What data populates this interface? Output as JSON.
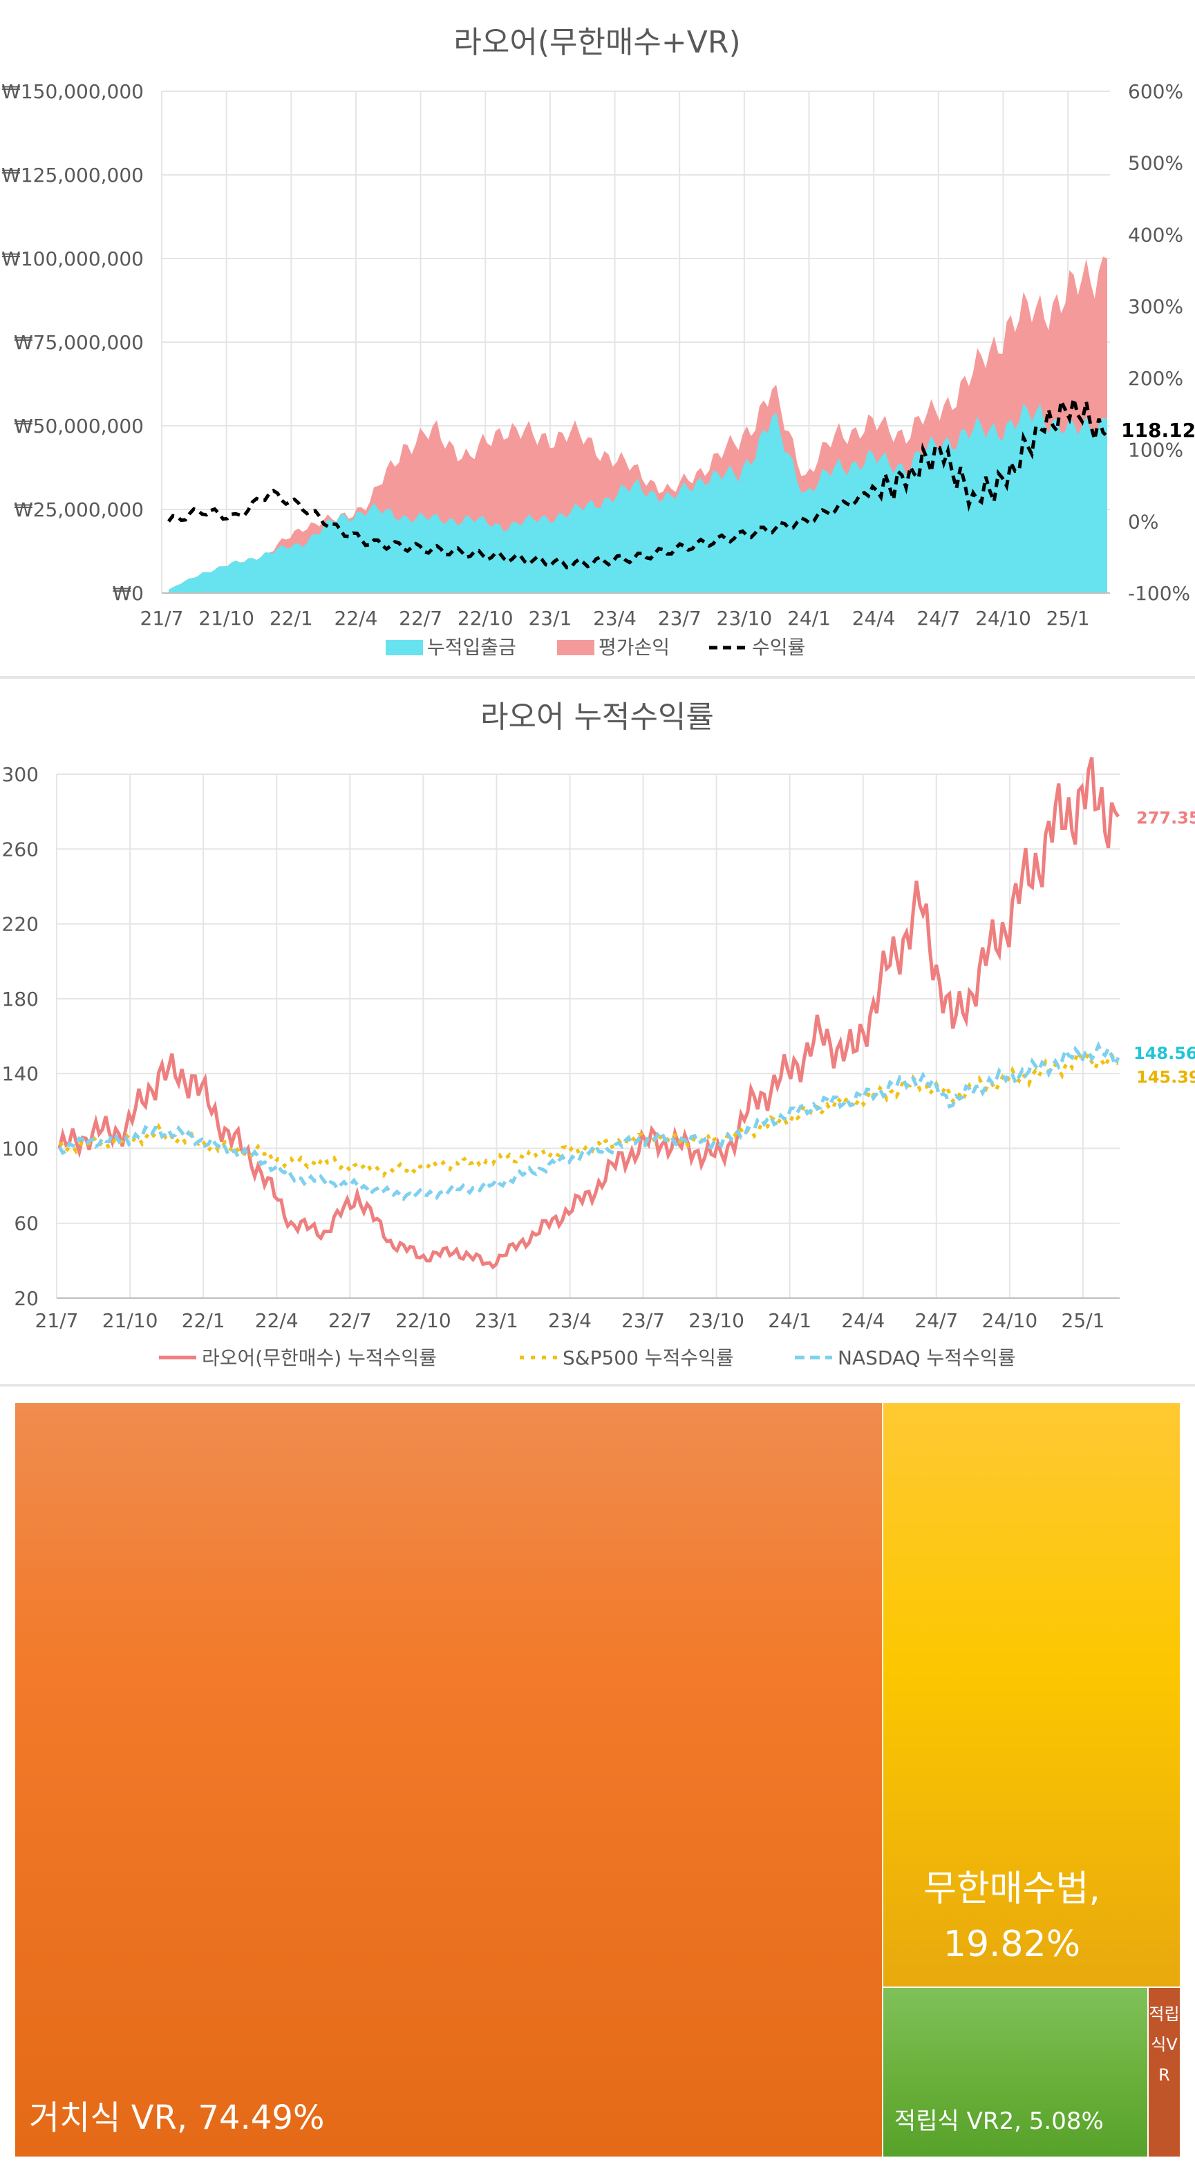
{
  "chart_data": [
    {
      "type": "area",
      "title": "라오어(무한매수+VR)",
      "x_ticks": [
        "21/7",
        "21/10",
        "22/1",
        "22/4",
        "22/7",
        "22/10",
        "23/1",
        "23/4",
        "23/7",
        "23/10",
        "24/1",
        "24/4",
        "24/7",
        "24/10",
        "25/1"
      ],
      "y_left_ticks": [
        "₩150,000,000",
        "₩125,000,000",
        "₩100,000,000",
        "₩75,000,000",
        "₩50,000,000",
        "₩25,000,000",
        "₩0"
      ],
      "y_right_ticks": [
        "600%",
        "500%",
        "400%",
        "300%",
        "200%",
        "100%",
        "0%",
        "-100%"
      ],
      "ylim_left": [
        0,
        150000000
      ],
      "ylim_right": [
        -100,
        600
      ],
      "end_label": "118.12%",
      "legend_position": "bottom",
      "series": [
        {
          "name": "누적입출금",
          "color": "#66e3ee",
          "axis": "left",
          "values": [
            1000000,
            6000000,
            9000000,
            12000000,
            15000000,
            22000000,
            25000000,
            23000000,
            22000000,
            22000000,
            20000000,
            22000000,
            24000000,
            28000000,
            32000000,
            28000000,
            35000000,
            35000000,
            52000000,
            30000000,
            38000000,
            40000000,
            38000000,
            45000000,
            48000000,
            50000000,
            54000000,
            48000000,
            52000000
          ]
        },
        {
          "name": "평가손익",
          "color": "#f59a9a",
          "axis": "left",
          "values": [
            1000000,
            6000000,
            9000000,
            12000000,
            20000000,
            22000000,
            27000000,
            44000000,
            48000000,
            40000000,
            50000000,
            46000000,
            48000000,
            42000000,
            36000000,
            30000000,
            38000000,
            45000000,
            60000000,
            35000000,
            48000000,
            50000000,
            48000000,
            55000000,
            65000000,
            80000000,
            85000000,
            90000000,
            100000000
          ]
        },
        {
          "name": "수익률",
          "color": "#000000",
          "axis": "right",
          "values": [
            0,
            15,
            5,
            40,
            20,
            -10,
            -30,
            -35,
            -40,
            -45,
            -50,
            -55,
            -60,
            -55,
            -50,
            -40,
            -30,
            -20,
            -10,
            0,
            20,
            40,
            60,
            100,
            30,
            60,
            130,
            160,
            118.12
          ]
        }
      ]
    },
    {
      "type": "line",
      "title": "라오어 누적수익률",
      "x_ticks": [
        "21/7",
        "21/10",
        "22/1",
        "22/4",
        "22/7",
        "22/10",
        "23/1",
        "23/4",
        "23/7",
        "23/10",
        "24/1",
        "24/4",
        "24/7",
        "24/10",
        "25/1"
      ],
      "y_ticks": [
        "300",
        "260",
        "220",
        "180",
        "140",
        "100",
        "60",
        "20"
      ],
      "ylim": [
        20,
        300
      ],
      "legend_position": "bottom",
      "series": [
        {
          "name": "라오어(무한매수) 누적수익률",
          "color": "#ef7f7f",
          "end_label": "277.35",
          "values": [
            100,
            108,
            110,
            140,
            138,
            110,
            90,
            60,
            55,
            75,
            50,
            42,
            45,
            38,
            50,
            62,
            75,
            95,
            105,
            100,
            95,
            125,
            140,
            160,
            150,
            195,
            230,
            165,
            200,
            235,
            270,
            290,
            277.35
          ]
        },
        {
          "name": "S&P500 누적수익률",
          "color": "#f2c00f",
          "end_label": "145.39",
          "values": [
            100,
            103,
            104,
            108,
            104,
            100,
            98,
            92,
            93,
            90,
            88,
            90,
            92,
            93,
            96,
            98,
            100,
            104,
            106,
            104,
            105,
            110,
            116,
            122,
            125,
            130,
            135,
            128,
            134,
            138,
            142,
            148,
            145.39
          ]
        },
        {
          "name": "NASDAQ 누적수익률",
          "color": "#7ed0ef",
          "end_label": "148.56",
          "values": [
            100,
            104,
            105,
            110,
            106,
            100,
            95,
            85,
            82,
            80,
            76,
            75,
            78,
            80,
            86,
            92,
            98,
            102,
            106,
            104,
            103,
            112,
            118,
            124,
            126,
            132,
            138,
            125,
            135,
            140,
            145,
            152,
            148.56
          ]
        }
      ]
    },
    {
      "type": "treemap",
      "items": [
        {
          "label": "거치식 VR, 74.49%",
          "value": 74.49,
          "color": "#ee7022"
        },
        {
          "label": "무한매수법,",
          "label2": "19.82%",
          "value": 19.82,
          "color": "#fbbf1c"
        },
        {
          "label": "적립식 VR2, 5.08%",
          "value": 5.08,
          "color": "#6db33f"
        },
        {
          "label": "적립식VR",
          "value": 0.61,
          "color": "#c0552a"
        }
      ]
    }
  ]
}
